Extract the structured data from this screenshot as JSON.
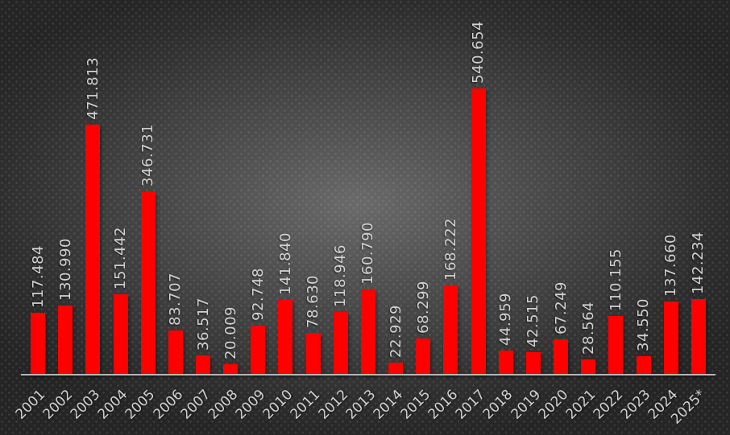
{
  "chart_data": {
    "type": "bar",
    "categories": [
      "2001",
      "2002",
      "2003",
      "2004",
      "2005",
      "2006",
      "2007",
      "2008",
      "2009",
      "2010",
      "2011",
      "2012",
      "2013",
      "2014",
      "2015",
      "2016",
      "2017",
      "2018",
      "2019",
      "2020",
      "2021",
      "2022",
      "2023",
      "2024",
      "2025*"
    ],
    "values": [
      117484,
      130990,
      471813,
      151442,
      346731,
      83707,
      36517,
      20009,
      92748,
      141840,
      78630,
      118946,
      160790,
      22929,
      68299,
      168222,
      540654,
      44959,
      42515,
      67249,
      28564,
      110155,
      34550,
      137660,
      142234
    ],
    "value_labels": [
      "117.484",
      "130.990",
      "471.813",
      "151.442",
      "346.731",
      "83.707",
      "36.517",
      "20.009",
      "92.748",
      "141.840",
      "78.630",
      "118.946",
      "160.790",
      "22.929",
      "68.299",
      "168.222",
      "540.654",
      "44.959",
      "42.515",
      "67.249",
      "28.564",
      "110.155",
      "34.550",
      "137.660",
      "142.234"
    ],
    "title": "",
    "xlabel": "",
    "ylabel": "",
    "ylim": [
      0,
      565000
    ],
    "grid": false,
    "legend": false,
    "y_axis_visible": false,
    "bar_color": "#fe0000",
    "label_color": "#d2d2d2",
    "axis_color": "#b5b5b5",
    "background_center_color": "#6a6a6a",
    "background_edge_color": "#252525",
    "value_label_rotation_deg": -90,
    "x_tick_rotation_deg": -45
  }
}
